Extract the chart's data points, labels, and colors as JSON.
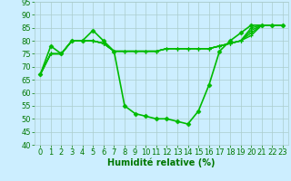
{
  "xlabel": "Humidité relative (%)",
  "background_color": "#cceeff",
  "grid_color": "#aacccc",
  "line_color": "#00bb00",
  "ylim": [
    40,
    95
  ],
  "xlim": [
    -0.5,
    23.5
  ],
  "yticks": [
    40,
    45,
    50,
    55,
    60,
    65,
    70,
    75,
    80,
    85,
    90,
    95
  ],
  "xticks": [
    0,
    1,
    2,
    3,
    4,
    5,
    6,
    7,
    8,
    9,
    10,
    11,
    12,
    13,
    14,
    15,
    16,
    17,
    18,
    19,
    20,
    21,
    22,
    23
  ],
  "series_dip": [
    67,
    78,
    75,
    80,
    80,
    84,
    80,
    76,
    55,
    52,
    51,
    50,
    50,
    49,
    48,
    53,
    63,
    76,
    80,
    83,
    86,
    86,
    86,
    86
  ],
  "series_flat": [
    [
      67,
      75,
      75,
      80,
      80,
      80,
      79,
      76,
      76,
      76,
      76,
      76,
      77,
      77,
      77,
      77,
      77,
      78,
      79,
      80,
      85,
      86,
      86,
      86
    ],
    [
      67,
      75,
      75,
      80,
      80,
      80,
      79,
      76,
      76,
      76,
      76,
      76,
      77,
      77,
      77,
      77,
      77,
      78,
      79,
      80,
      84,
      86,
      86,
      86
    ],
    [
      67,
      75,
      75,
      80,
      80,
      80,
      79,
      76,
      76,
      76,
      76,
      76,
      77,
      77,
      77,
      77,
      77,
      78,
      79,
      80,
      83,
      86,
      86,
      86
    ],
    [
      67,
      75,
      75,
      80,
      80,
      80,
      79,
      76,
      76,
      76,
      76,
      76,
      77,
      77,
      77,
      77,
      77,
      78,
      79,
      80,
      82,
      86,
      86,
      86
    ]
  ],
  "xlabel_fontsize": 7,
  "tick_fontsize": 6,
  "xlabel_color": "#007700",
  "tick_color": "#007700",
  "linewidth_dip": 1.2,
  "linewidth_flat": 1.0,
  "marker_size_dip": 2.5,
  "marker_size_flat": 2.5
}
